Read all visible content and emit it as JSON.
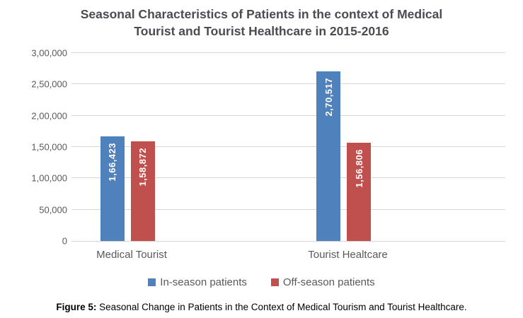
{
  "title": {
    "line1": "Seasonal Characteristics of Patients in the context of Medical",
    "line2": "Tourist and Tourist Healthcare in 2015-2016"
  },
  "caption": {
    "prefix": "Figure 5:",
    "text": " Seasonal Change in Patients in the Context of Medical Tourism and Tourist Healthcare."
  },
  "colors": {
    "in_season": "#4F81BD",
    "off_season": "#C0504D",
    "gridline": "#D6D6D6",
    "axis_text": "#595959",
    "title_text": "#4A4C52",
    "bar_label_text": "#FFFFFF"
  },
  "chart_data": {
    "type": "bar",
    "title": "Seasonal Characteristics of Patients in the context of Medical Tourist and Tourist Healthcare in 2015-2016",
    "categories": [
      "Medical Tourist",
      "Tourist Healtcare"
    ],
    "series": [
      {
        "name": "In-season patients",
        "color": "#4F81BD",
        "values": [
          166423,
          270517
        ],
        "value_labels": [
          "1,66,423",
          "2,70,517"
        ]
      },
      {
        "name": "Off-season patients",
        "color": "#C0504D",
        "values": [
          158872,
          156806
        ],
        "value_labels": [
          "1,58,872",
          "1,56,806"
        ]
      }
    ],
    "xlabel": "",
    "ylabel": "",
    "ylim": [
      0,
      300000
    ],
    "yticks": [
      {
        "value": 300000,
        "label": "3,00,000"
      },
      {
        "value": 250000,
        "label": "2,50,000"
      },
      {
        "value": 200000,
        "label": "2,00,000"
      },
      {
        "value": 150000,
        "label": "1,50,000"
      },
      {
        "value": 100000,
        "label": "1,00,000"
      },
      {
        "value": 50000,
        "label": "50,000"
      },
      {
        "value": 0,
        "label": "0"
      }
    ],
    "grid": true,
    "legend_position": "bottom"
  }
}
